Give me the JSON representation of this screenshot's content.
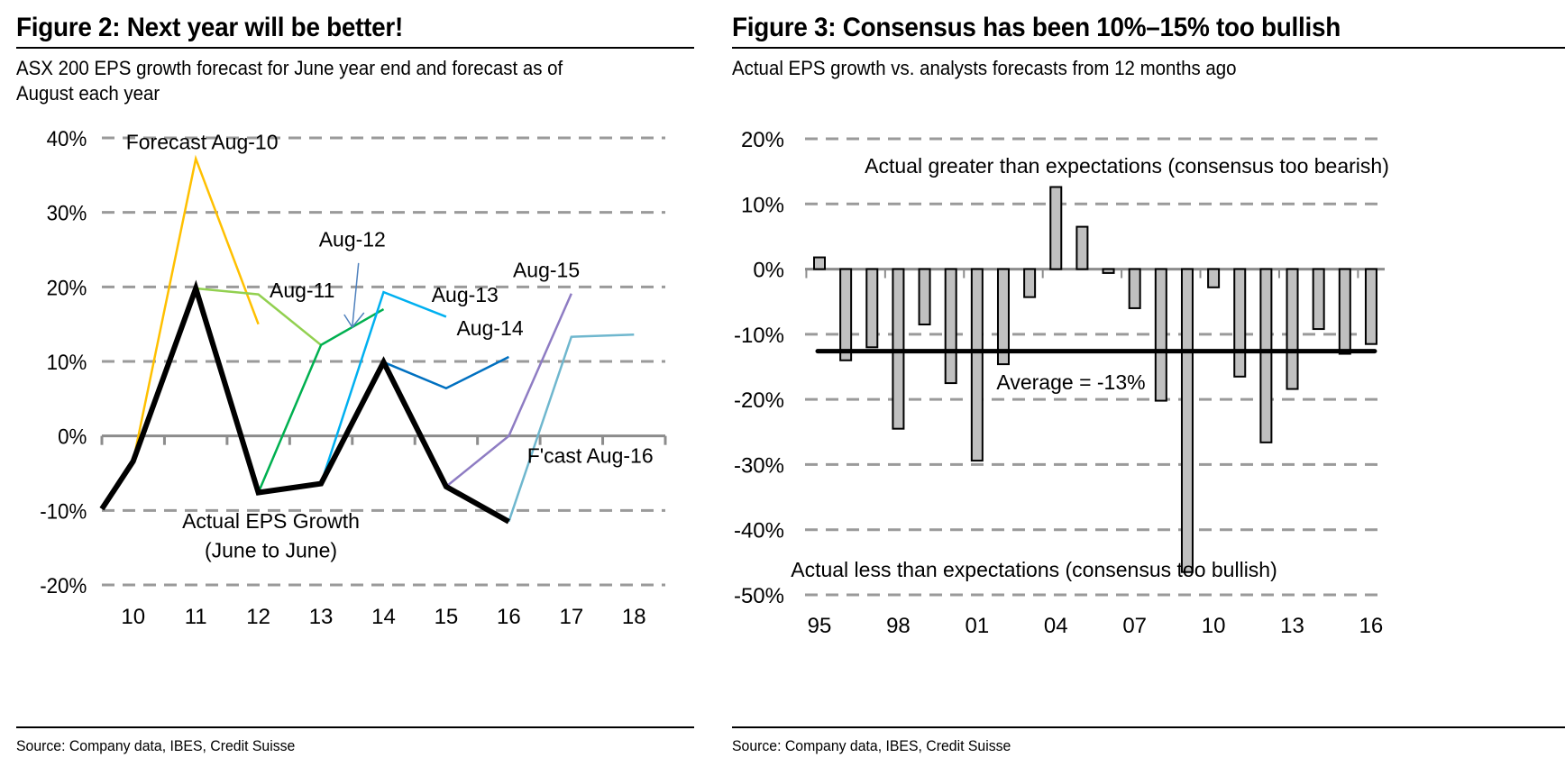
{
  "figures": [
    {
      "title": "Figure 2: Next year will be better!",
      "subtitle_line1": "ASX 200 EPS growth forecast for June year end and forecast as of",
      "subtitle_line2": "August each year",
      "source": "Source: Company data, IBES, Credit Suisse"
    },
    {
      "title": "Figure 3: Consensus has been 10%–15% too bullish",
      "subtitle_line1": "Actual EPS growth vs. analysts forecasts from 12 months ago",
      "source": "Source: Company data, IBES, Credit Suisse"
    }
  ],
  "chart_data": [
    {
      "type": "line",
      "title": "Figure 2: Next year will be better!",
      "xlabel": "",
      "ylabel": "",
      "x_ticks": [
        "10",
        "11",
        "12",
        "13",
        "14",
        "15",
        "16",
        "17",
        "18"
      ],
      "x_tick_values": [
        10,
        11,
        12,
        13,
        14,
        15,
        16,
        17,
        18
      ],
      "xlim": [
        9.5,
        18.5
      ],
      "y_ticks": [
        "40%",
        "30%",
        "20%",
        "10%",
        "0%",
        "-10%",
        "-20%"
      ],
      "y_tick_values": [
        40,
        30,
        20,
        10,
        0,
        -10,
        -20
      ],
      "ylim": [
        -20,
        40
      ],
      "grid": "horizontal dashed",
      "legend": "none (inline labels)",
      "series": [
        {
          "name": "Actual EPS Growth (June to June)",
          "color": "#000000",
          "bold": true,
          "points": [
            [
              9.5,
              -9.8
            ],
            [
              10,
              -3.4
            ],
            [
              11,
              19.8
            ],
            [
              12,
              -7.6
            ],
            [
              13,
              -6.4
            ],
            [
              14,
              9.9
            ],
            [
              15,
              -6.8
            ],
            [
              16,
              -11.5
            ]
          ]
        },
        {
          "name": "Forecast Aug-10",
          "color": "#FFC000",
          "points": [
            [
              10,
              -3.4
            ],
            [
              11,
              37.2
            ],
            [
              12,
              15.0
            ]
          ]
        },
        {
          "name": "Aug-11",
          "color": "#92D050",
          "points": [
            [
              11,
              19.8
            ],
            [
              12,
              19.0
            ],
            [
              13,
              12.2
            ]
          ]
        },
        {
          "name": "Aug-12",
          "color": "#00B050",
          "points": [
            [
              12,
              -7.6
            ],
            [
              13,
              12.2
            ],
            [
              14,
              17.0
            ]
          ]
        },
        {
          "name": "Aug-13",
          "color": "#00B0F0",
          "points": [
            [
              13,
              -6.4
            ],
            [
              14,
              19.3
            ],
            [
              15,
              16.0
            ]
          ]
        },
        {
          "name": "Aug-14",
          "color": "#0070C0",
          "points": [
            [
              14,
              9.9
            ],
            [
              15,
              6.4
            ],
            [
              16,
              10.6
            ]
          ]
        },
        {
          "name": "Aug-15",
          "color": "#8E7CC3",
          "points": [
            [
              15,
              -6.8
            ],
            [
              16,
              0.0
            ],
            [
              17,
              19.1
            ]
          ]
        },
        {
          "name": "F'cast Aug-16",
          "color": "#6FB7CE",
          "points": [
            [
              16,
              -11.5
            ],
            [
              17,
              13.3
            ],
            [
              18,
              13.6
            ]
          ]
        }
      ],
      "annotations": [
        {
          "text": "Forecast Aug-10",
          "x": 11.1,
          "y": 38.5
        },
        {
          "text": "Aug-11",
          "x": 12.7,
          "y": 18.6
        },
        {
          "text": "Aug-12",
          "x": 13.5,
          "y": 25.4
        },
        {
          "text": "Aug-13",
          "x": 15.3,
          "y": 18.0
        },
        {
          "text": "Aug-14",
          "x": 15.7,
          "y": 13.5
        },
        {
          "text": "Aug-15",
          "x": 16.6,
          "y": 21.3
        },
        {
          "text": "F'cast Aug-16",
          "x": 17.3,
          "y": -3.6
        },
        {
          "text": "Actual EPS Growth",
          "x": 12.2,
          "y": -12.4
        },
        {
          "text": "(June to June)",
          "x": 12.2,
          "y": -16.3
        }
      ],
      "arrow": {
        "label": "Aug-12",
        "from": [
          13.6,
          23.2
        ],
        "to": [
          13.5,
          14.6
        ],
        "color": "#4F81BD"
      }
    },
    {
      "type": "bar",
      "title": "Figure 3: Consensus has been 10%–15% too bullish",
      "xlabel": "",
      "ylabel": "",
      "categories": [
        "95",
        "96",
        "97",
        "98",
        "99",
        "00",
        "01",
        "02",
        "03",
        "04",
        "05",
        "06",
        "07",
        "08",
        "09",
        "10",
        "11",
        "12",
        "13",
        "14",
        "15",
        "16"
      ],
      "values": [
        1.8,
        -14.0,
        -12.0,
        -24.5,
        -8.5,
        -17.5,
        -29.4,
        -14.6,
        -4.3,
        12.6,
        6.5,
        -0.6,
        -6.0,
        -20.2,
        -46.5,
        -2.8,
        -16.5,
        -26.6,
        -18.4,
        -9.2,
        -13.0,
        -11.5
      ],
      "x_tick_labels": [
        "95",
        "98",
        "01",
        "04",
        "07",
        "10",
        "13",
        "16"
      ],
      "y_ticks": [
        "20%",
        "10%",
        "0%",
        "-10%",
        "-20%",
        "-30%",
        "-40%",
        "-50%"
      ],
      "y_tick_values": [
        20,
        10,
        0,
        -10,
        -20,
        -30,
        -40,
        -50
      ],
      "ylim": [
        -50,
        20
      ],
      "grid": "horizontal dashed",
      "legend": "none",
      "bar_color": "#C0C0C0",
      "bar_edge_color": "#000000",
      "average": {
        "value": -12.6,
        "label": "Average = -13%"
      },
      "annotations": [
        {
          "text": "Actual greater than expectations (consensus too bearish)",
          "position": "top"
        },
        {
          "text": "Actual less than expectations (consensus too bullish)",
          "position": "bottom"
        }
      ]
    }
  ]
}
